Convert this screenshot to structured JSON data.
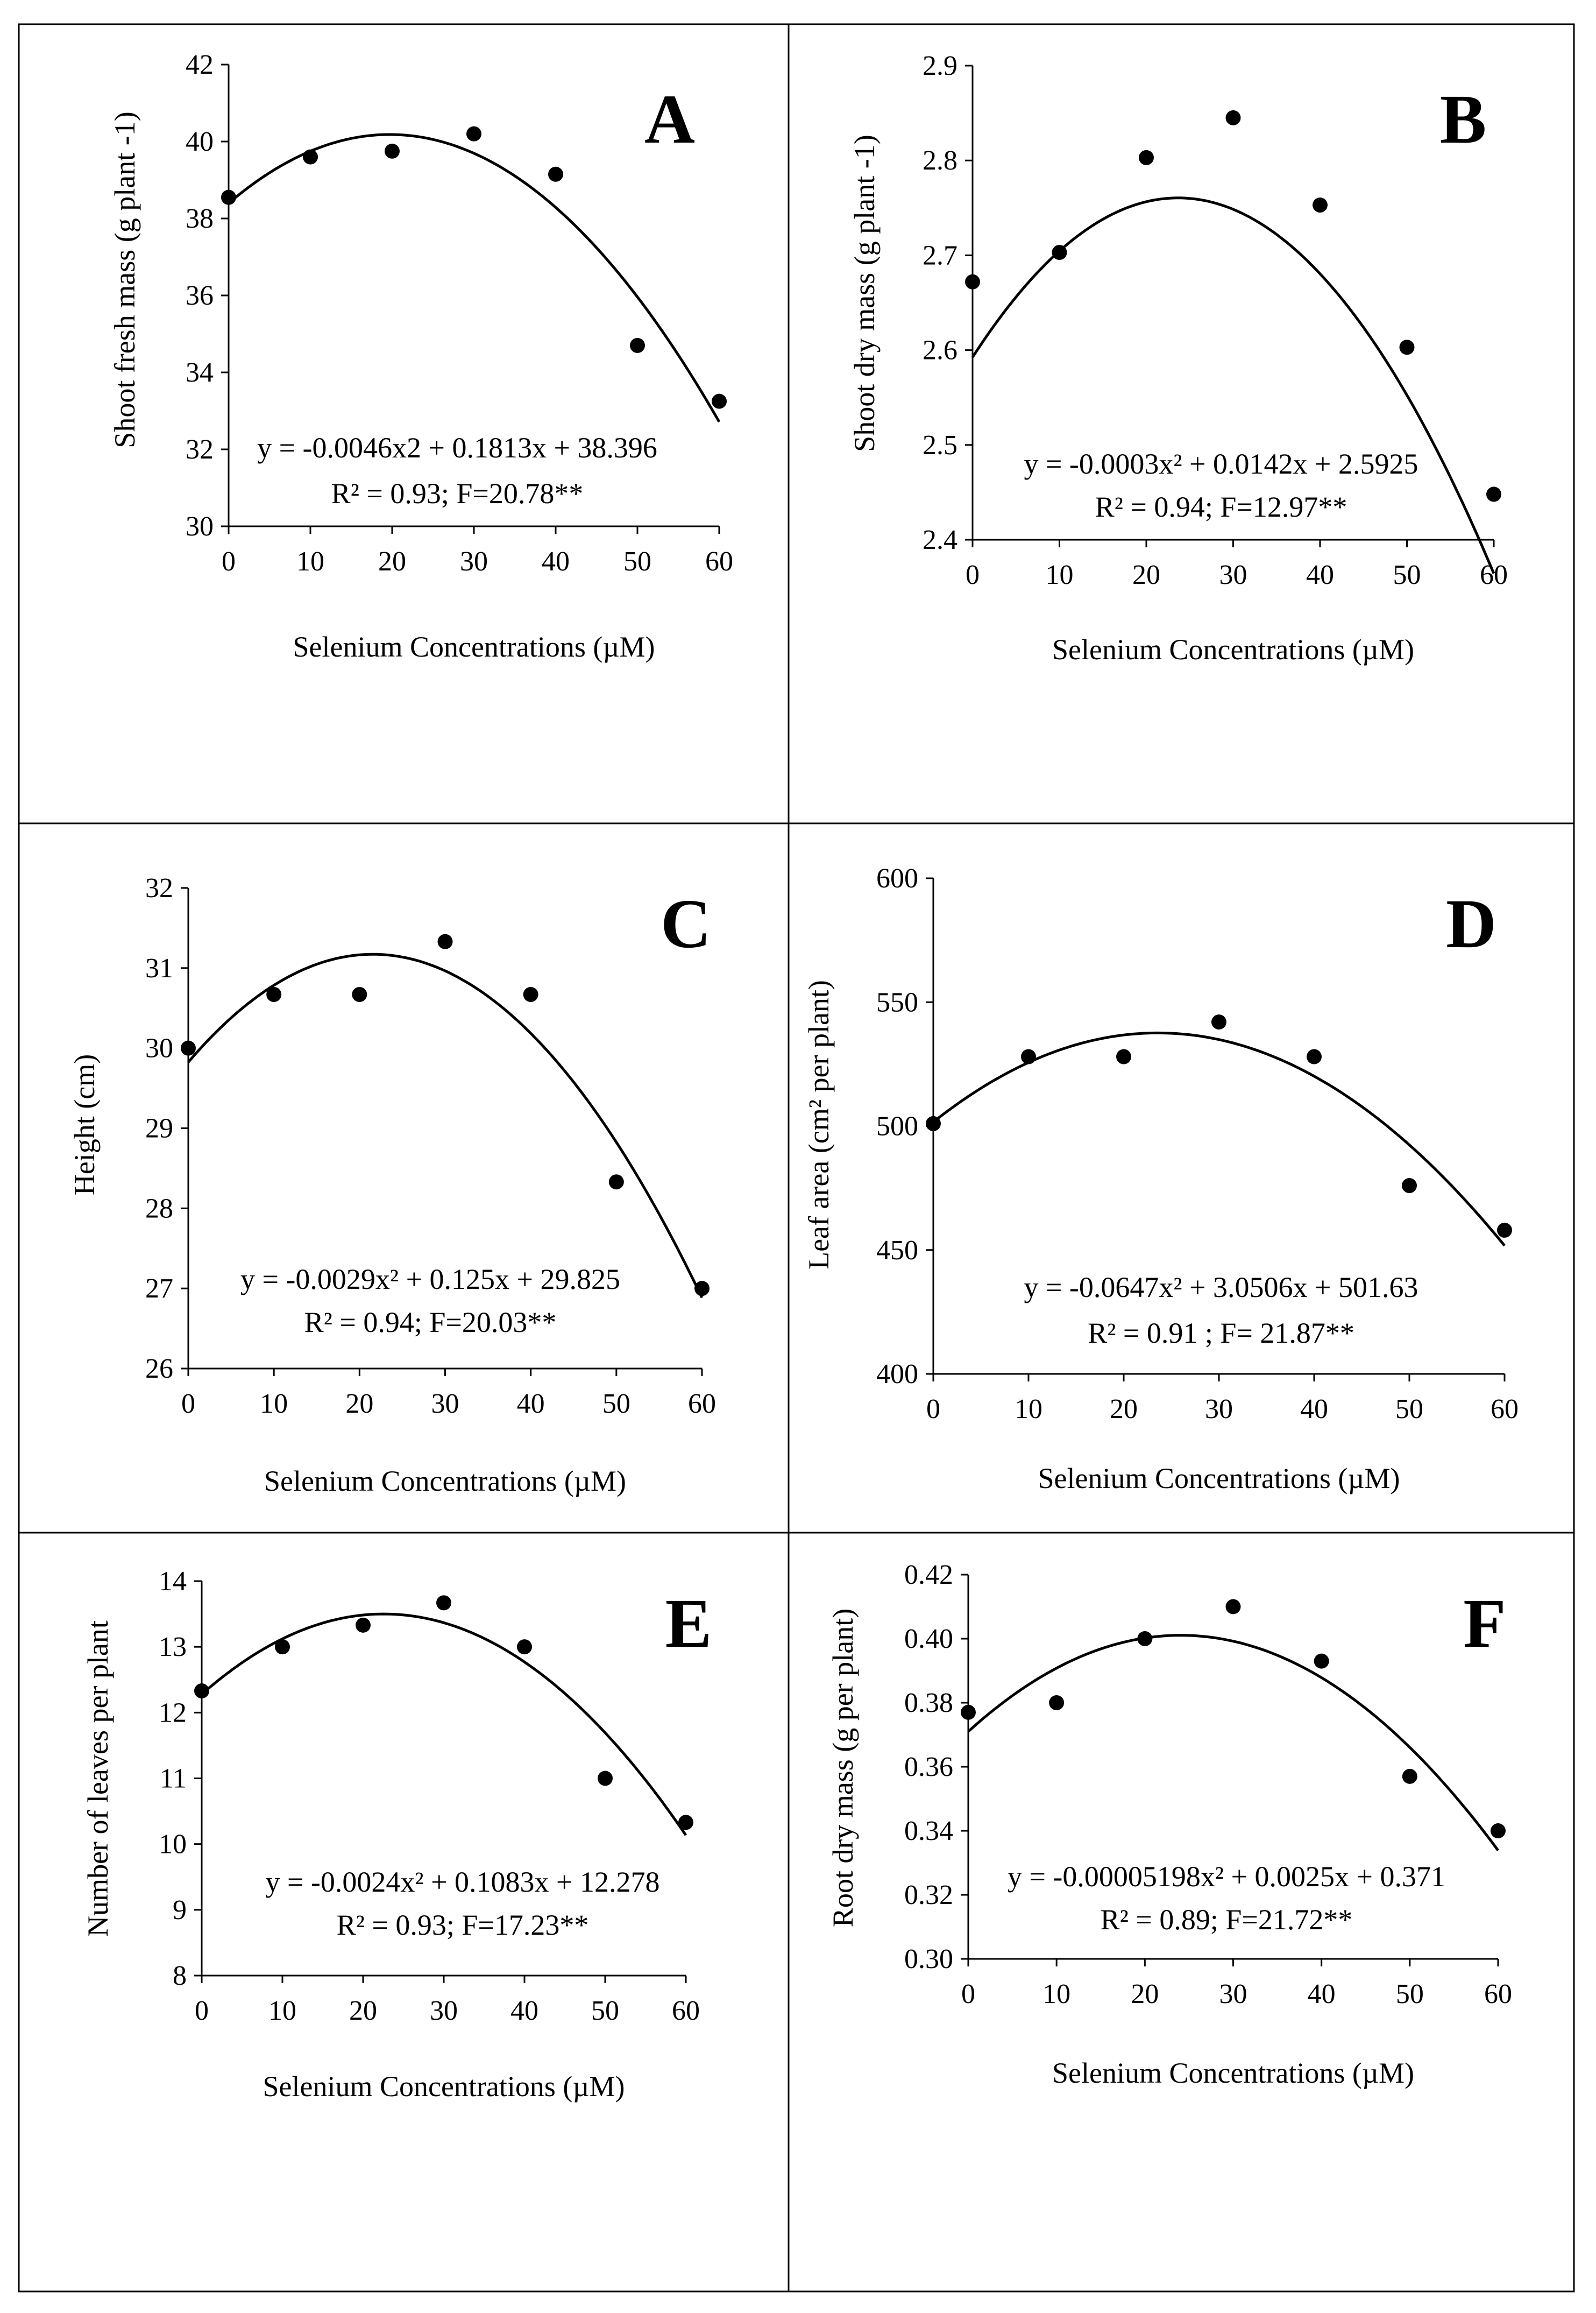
{
  "chart_data": [
    {
      "type": "scatter",
      "panel": "A",
      "ylabel": "Shoot fresh mass (g plant -1)",
      "xlabel": "Selenium Concentrations (µM)",
      "ylim": [
        30,
        42
      ],
      "yticks": [
        30,
        32,
        34,
        36,
        38,
        40,
        42
      ],
      "xlim": [
        0,
        60
      ],
      "xticks": [
        0,
        10,
        20,
        30,
        40,
        50,
        60
      ],
      "x": [
        0,
        10,
        20,
        30,
        40,
        50,
        60
      ],
      "y": [
        38.55,
        39.6,
        39.75,
        40.2,
        39.15,
        34.7,
        33.25
      ],
      "fit": {
        "a": -0.0046,
        "b": 0.1813,
        "c": 38.396
      },
      "eq_line1": "y = -0.0046x2 + 0.1813x + 38.396",
      "eq_line2": "R² = 0.93; F=20.78**"
    },
    {
      "type": "scatter",
      "panel": "B",
      "ylabel": "Shoot dry mass (g plant -1)",
      "xlabel": "Selenium Concentrations (µM)",
      "ylim": [
        2.4,
        2.9
      ],
      "yticks": [
        2.4,
        2.5,
        2.6,
        2.7,
        2.8,
        2.9
      ],
      "xlim": [
        0,
        60
      ],
      "xticks": [
        0,
        10,
        20,
        30,
        40,
        50,
        60
      ],
      "x": [
        0,
        10,
        20,
        30,
        40,
        50,
        60
      ],
      "y": [
        2.672,
        2.703,
        2.803,
        2.845,
        2.753,
        2.603,
        2.448
      ],
      "fit": {
        "a": -0.0003,
        "b": 0.0142,
        "c": 2.5925
      },
      "eq_line1": "y = -0.0003x² + 0.0142x + 2.5925",
      "eq_line2": "R² = 0.94; F=12.97**"
    },
    {
      "type": "scatter",
      "panel": "C",
      "ylabel": "Height (cm)",
      "xlabel": "Selenium Concentrations (µM)",
      "ylim": [
        26,
        32
      ],
      "yticks": [
        26,
        27,
        28,
        29,
        30,
        31,
        32
      ],
      "xlim": [
        0,
        60
      ],
      "xticks": [
        0,
        10,
        20,
        30,
        40,
        50,
        60
      ],
      "x": [
        0,
        10,
        20,
        30,
        40,
        50,
        60
      ],
      "y": [
        30.0,
        30.67,
        30.67,
        31.33,
        30.67,
        28.33,
        27.0
      ],
      "fit": {
        "a": -0.0029,
        "b": 0.125,
        "c": 29.825
      },
      "eq_line1": "y = -0.0029x² + 0.125x + 29.825",
      "eq_line2": "R² = 0.94; F=20.03**"
    },
    {
      "type": "scatter",
      "panel": "D",
      "ylabel": "Leaf area (cm² per plant)",
      "xlabel": "Selenium Concentrations (µM)",
      "ylim": [
        400,
        600
      ],
      "yticks": [
        400,
        450,
        500,
        550,
        600
      ],
      "xlim": [
        0,
        60
      ],
      "xticks": [
        0,
        10,
        20,
        30,
        40,
        50,
        60
      ],
      "x": [
        0,
        10,
        20,
        30,
        40,
        50,
        60
      ],
      "y": [
        501,
        528,
        528,
        542,
        528,
        476,
        458
      ],
      "fit": {
        "a": -0.0647,
        "b": 3.0506,
        "c": 501.63
      },
      "eq_line1": "y = -0.0647x² + 3.0506x + 501.63",
      "eq_line2": "R² = 0.91 ; F= 21.87**"
    },
    {
      "type": "scatter",
      "panel": "E",
      "ylabel": "Number of leaves per plant",
      "xlabel": "Selenium Concentrations (µM)",
      "ylim": [
        8,
        14
      ],
      "yticks": [
        8,
        9,
        10,
        11,
        12,
        13,
        14
      ],
      "xlim": [
        0,
        60
      ],
      "xticks": [
        0,
        10,
        20,
        30,
        40,
        50,
        60
      ],
      "x": [
        0,
        10,
        20,
        30,
        40,
        50,
        60
      ],
      "y": [
        12.33,
        13.0,
        13.33,
        13.67,
        13.0,
        11.0,
        10.33
      ],
      "fit": {
        "a": -0.0024,
        "b": 0.1083,
        "c": 12.278
      },
      "eq_line1": "y = -0.0024x² + 0.1083x + 12.278",
      "eq_line2": "R² = 0.93; F=17.23**"
    },
    {
      "type": "scatter",
      "panel": "F",
      "ylabel": "Root dry mass (g per plant)",
      "xlabel": "Selenium Concentrations (µM)",
      "ylim": [
        0.3,
        0.42
      ],
      "yticks": [
        0.3,
        0.32,
        0.34,
        0.36,
        0.38,
        0.4,
        0.42
      ],
      "ytick_labels": [
        "0.30",
        "0.32",
        "0.34",
        "0.36",
        "0.38",
        "0.40",
        "0.42"
      ],
      "xlim": [
        0,
        60
      ],
      "xticks": [
        0,
        10,
        20,
        30,
        40,
        50,
        60
      ],
      "x": [
        0,
        10,
        20,
        30,
        40,
        50,
        60
      ],
      "y": [
        0.377,
        0.38,
        0.4,
        0.41,
        0.393,
        0.357,
        0.34
      ],
      "fit": {
        "a": -5.198e-05,
        "b": 0.0025,
        "c": 0.371
      },
      "eq_line1": "y = -0.00005198x² + 0.0025x + 0.371",
      "eq_line2": "R² = 0.89; F=21.72**"
    }
  ]
}
